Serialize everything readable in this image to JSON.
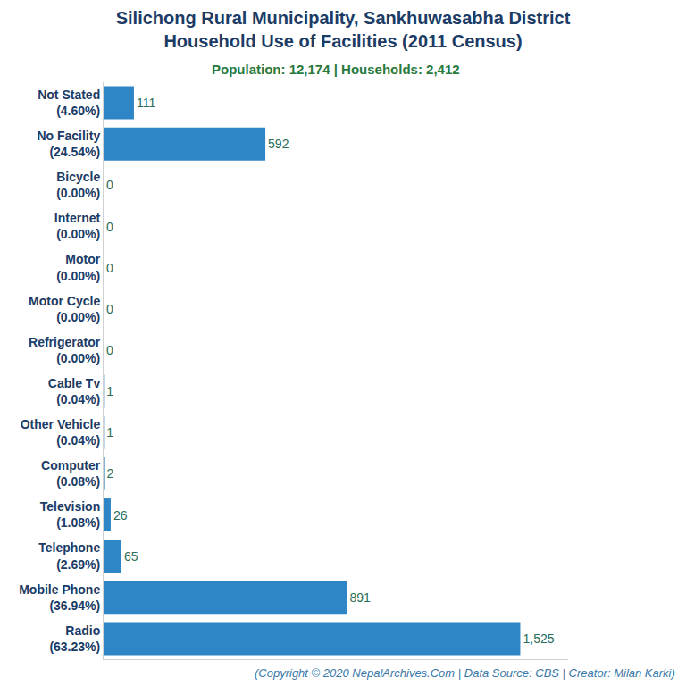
{
  "chart_data": {
    "type": "bar",
    "orientation": "horizontal",
    "title": "Silichong Rural Municipality, Sankhuwasabha District\nHousehold Use of Facilities (2011 Census)",
    "subtitle": "Population: 12,174 | Households: 2,412",
    "footer": "(Copyright © 2020 NepalArchives.Com | Data Source: CBS | Creator: Milan Karki)",
    "categories": [
      "Not Stated\n(4.60%)",
      "No Facility\n(24.54%)",
      "Bicycle\n(0.00%)",
      "Internet\n(0.00%)",
      "Motor\n(0.00%)",
      "Motor Cycle\n(0.00%)",
      "Refrigerator\n(0.00%)",
      "Cable Tv\n(0.04%)",
      "Other Vehicle\n(0.04%)",
      "Computer\n(0.08%)",
      "Television\n(1.08%)",
      "Telephone\n(2.69%)",
      "Mobile Phone\n(36.94%)",
      "Radio\n(63.23%)"
    ],
    "values": [
      111,
      592,
      0,
      0,
      0,
      0,
      0,
      1,
      1,
      2,
      26,
      65,
      891,
      1525
    ],
    "value_labels": [
      "111",
      "592",
      "0",
      "0",
      "0",
      "0",
      "0",
      "1",
      "1",
      "2",
      "26",
      "65",
      "891",
      "1,525"
    ],
    "color": "#2f86c6",
    "xlim": [
      0,
      1700
    ],
    "tick_labels": "y",
    "grid": false,
    "data_labels": true
  }
}
